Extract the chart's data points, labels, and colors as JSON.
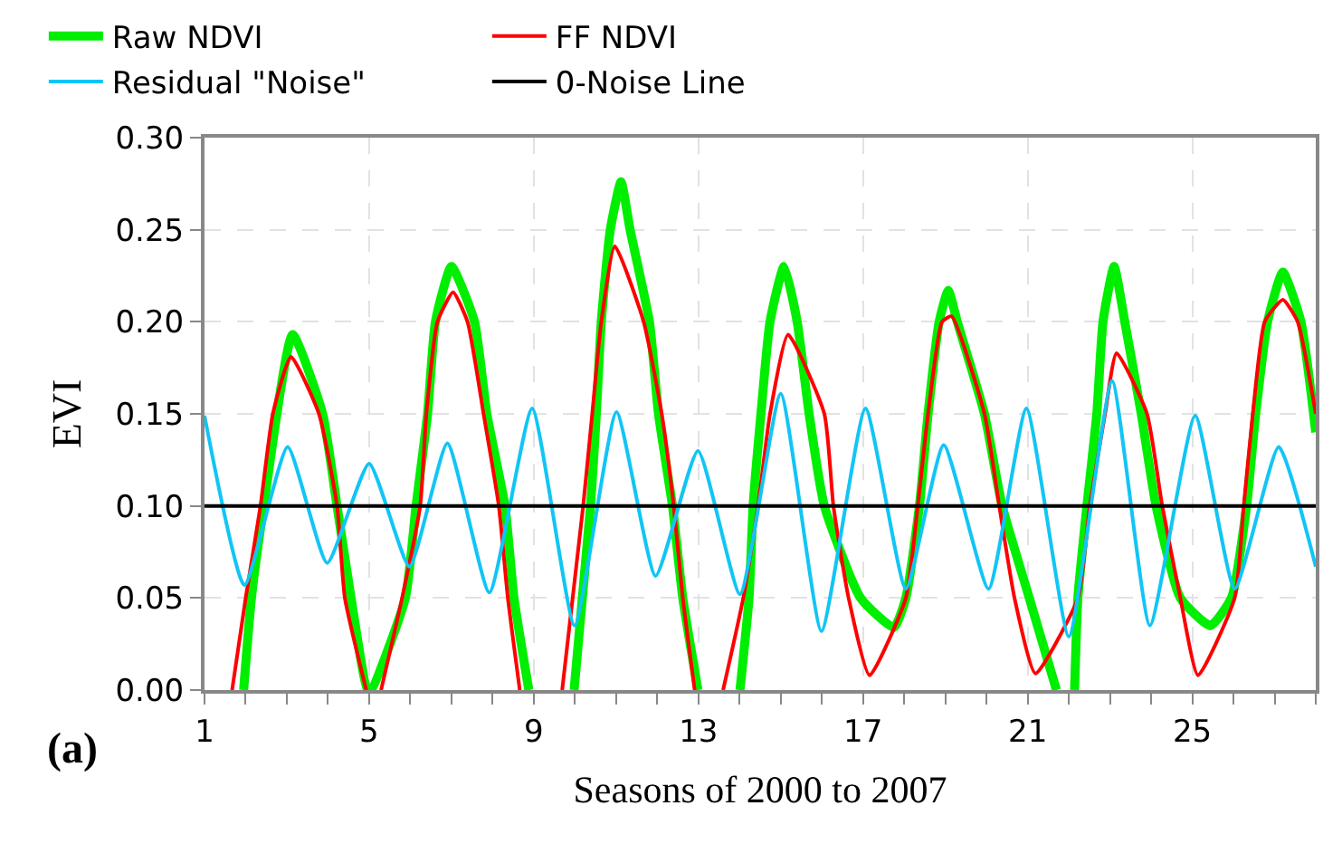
{
  "chart_data": {
    "type": "line",
    "xlabel": "Seasons of 2000 to 2007",
    "ylabel": "EVI",
    "annotations": [
      "(a)"
    ],
    "xlim": [
      1,
      28
    ],
    "ylim": [
      0,
      0.3
    ],
    "xticks": [
      1,
      {
        "value": 2,
        "label": null
      },
      {
        "value": 3,
        "label": null
      },
      {
        "value": 4,
        "label": null
      },
      5,
      {
        "value": 6,
        "label": null
      },
      {
        "value": 7,
        "label": null
      },
      {
        "value": 8,
        "label": null
      },
      9,
      {
        "value": 10,
        "label": null
      },
      {
        "value": 11,
        "label": null
      },
      {
        "value": 12,
        "label": null
      },
      13,
      {
        "value": 14,
        "label": null
      },
      {
        "value": 15,
        "label": null
      },
      {
        "value": 16,
        "label": null
      },
      17,
      {
        "value": 18,
        "label": null
      },
      {
        "value": 19,
        "label": null
      },
      {
        "value": 20,
        "label": null
      },
      21,
      {
        "value": 22,
        "label": null
      },
      {
        "value": 23,
        "label": null
      },
      {
        "value": 24,
        "label": null
      },
      25,
      {
        "value": 26,
        "label": null
      },
      {
        "value": 27,
        "label": null
      },
      {
        "value": 28,
        "label": null
      }
    ],
    "yticks": [
      {
        "value": 0,
        "label": "0.00"
      },
      {
        "value": 0.05,
        "label": "0.05"
      },
      {
        "value": 0.1,
        "label": "0.10"
      },
      {
        "value": 0.15,
        "label": "0.15"
      },
      {
        "value": 0.2,
        "label": "0.20"
      },
      {
        "value": 0.25,
        "label": "0.25"
      },
      {
        "value": 0.3,
        "label": "0.30"
      }
    ],
    "grid": true,
    "legend": "top left",
    "marker": "none",
    "line_style": "solid",
    "series": [
      {
        "name": "Raw NDVI",
        "color": "#00ee00",
        "x": [
          1.95,
          2.14,
          2.44,
          3.14,
          3.87,
          4.22,
          4.56,
          4.96,
          5.05,
          5.88,
          6.14,
          6.42,
          6.61,
          7.0,
          7.56,
          7.86,
          8.3,
          8.52,
          8.88,
          9.4,
          9.98,
          10.38,
          10.52,
          10.64,
          10.86,
          11.12,
          11.34,
          11.81,
          12.03,
          12.37,
          12.62,
          12.99,
          13.5,
          14.01,
          14.23,
          14.33,
          14.52,
          14.74,
          15.08,
          15.4,
          15.69,
          16.06,
          16.94,
          17.75,
          18.04,
          18.37,
          18.58,
          18.85,
          19.07,
          19.29,
          19.95,
          20.38,
          21.04,
          21.7,
          21.9,
          22.14,
          22.22,
          22.44,
          22.68,
          22.83,
          23.1,
          23.36,
          23.76,
          24.12,
          24.71,
          25.44,
          25.95,
          26.32,
          26.54,
          26.83,
          27.2,
          27.64,
          28.0
        ],
        "values": [
          0,
          0.05,
          0.1,
          0.193,
          0.15,
          0.1,
          0.05,
          0,
          0,
          0.05,
          0.1,
          0.15,
          0.2,
          0.23,
          0.2,
          0.15,
          0.1,
          0.05,
          0,
          null,
          0,
          0.1,
          0.15,
          0.2,
          0.25,
          0.276,
          0.25,
          0.2,
          0.15,
          0.1,
          0.05,
          0,
          null,
          0,
          0.05,
          0.1,
          0.15,
          0.2,
          0.23,
          0.2,
          0.15,
          0.1,
          0.05,
          0.034,
          0.05,
          0.1,
          0.15,
          0.2,
          0.217,
          0.2,
          0.15,
          0.1,
          0.05,
          0,
          null,
          0,
          0.05,
          0.1,
          0.15,
          0.2,
          0.23,
          0.2,
          0.15,
          0.1,
          0.05,
          0.035,
          0.05,
          0.1,
          0.15,
          0.2,
          0.227,
          0.2,
          0.14
        ]
      },
      {
        "name": "FF NDVI",
        "color": "#ff0000",
        "x": [
          1.67,
          2.0,
          2.36,
          2.66,
          3.1,
          3.78,
          4.22,
          4.41,
          4.93,
          5.1,
          5.29,
          5.8,
          6.24,
          6.39,
          6.66,
          7.04,
          7.39,
          7.78,
          8.15,
          8.37,
          8.66,
          9.2,
          9.69,
          10.2,
          10.42,
          10.64,
          10.97,
          11.67,
          12.11,
          12.4,
          12.62,
          12.91,
          13.3,
          13.6,
          14.09,
          14.45,
          14.74,
          15.18,
          16.06,
          16.28,
          16.65,
          17.16,
          18.04,
          18.33,
          18.58,
          18.92,
          19.15,
          19.95,
          20.31,
          20.68,
          21.19,
          22.22,
          22.51,
          22.88,
          23.16,
          23.9,
          24.27,
          24.71,
          25.14,
          26.03,
          26.25,
          26.47,
          26.76,
          27.2,
          27.56,
          28.0
        ],
        "values": [
          0,
          0.05,
          0.1,
          0.15,
          0.181,
          0.15,
          0.1,
          0.05,
          0,
          null,
          0,
          0.05,
          0.1,
          0.15,
          0.2,
          0.216,
          0.2,
          0.15,
          0.1,
          0.05,
          0,
          null,
          0,
          0.1,
          0.15,
          0.2,
          0.241,
          0.2,
          0.15,
          0.1,
          0.05,
          0,
          null,
          0,
          0.05,
          0.1,
          0.15,
          0.193,
          0.15,
          0.1,
          0.05,
          0.008,
          0.05,
          0.1,
          0.15,
          0.2,
          0.203,
          0.15,
          0.1,
          0.05,
          0.009,
          0.05,
          0.1,
          0.15,
          0.183,
          0.15,
          0.1,
          0.05,
          0.008,
          0.05,
          0.1,
          0.15,
          0.2,
          0.212,
          0.2,
          0.15
        ]
      },
      {
        "name": "Residual \"Noise\"",
        "color": "#11c5f5",
        "x": [
          1,
          1.97,
          3.02,
          3.98,
          5.0,
          5.98,
          6.9,
          7.92,
          8.96,
          9.99,
          11.01,
          11.96,
          12.99,
          14.01,
          15.0,
          15.99,
          17.06,
          18.04,
          18.96,
          20.05,
          20.97,
          22.0,
          23.05,
          23.97,
          25.07,
          26.03,
          27.1,
          28.0
        ],
        "values": [
          0.149,
          0.057,
          0.132,
          0.069,
          0.123,
          0.067,
          0.134,
          0.053,
          0.153,
          0.035,
          0.151,
          0.062,
          0.13,
          0.052,
          0.161,
          0.032,
          0.153,
          0.055,
          0.133,
          0.055,
          0.153,
          0.029,
          0.168,
          0.035,
          0.149,
          0.055,
          0.132,
          0.067
        ]
      },
      {
        "name": "0-Noise Line",
        "color": "#000000",
        "x": [
          1,
          28
        ],
        "values": [
          0.1,
          0.1
        ]
      }
    ]
  }
}
